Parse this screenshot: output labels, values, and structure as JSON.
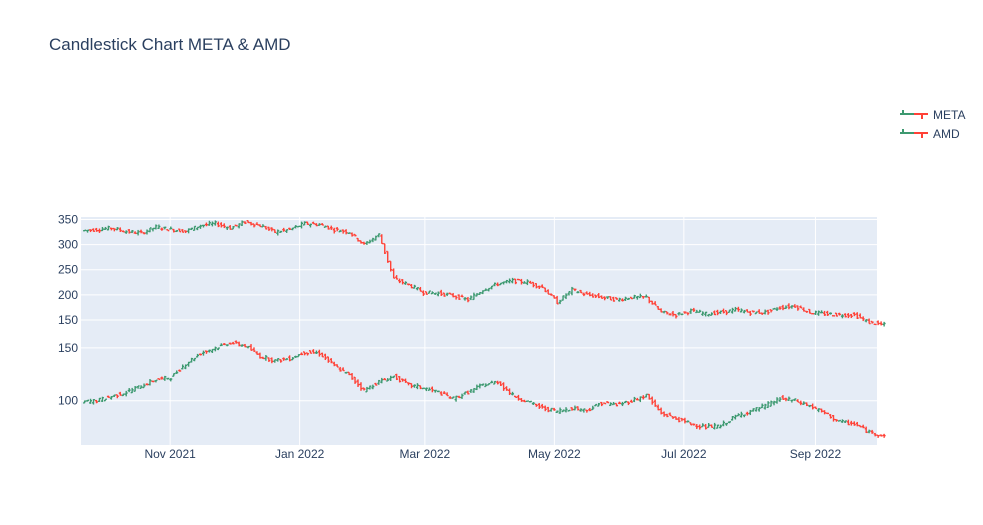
{
  "chart_data": {
    "type": "ohlc",
    "title": "Candlestick Chart META & AMD",
    "colors": {
      "increasing": "#3d9970",
      "decreasing": "#ff4136",
      "plot_bg": "#e5ecf6",
      "grid": "#ffffff",
      "text": "#2a3f5f"
    },
    "legend": {
      "position": "top-right",
      "entries": [
        "META",
        "AMD"
      ]
    },
    "x_axis": {
      "type": "date",
      "range": [
        "2021-09-20",
        "2022-09-30"
      ],
      "ticks": [
        {
          "date": "2021-11-01",
          "label": "Nov 2021"
        },
        {
          "date": "2022-01-01",
          "label": "Jan 2022"
        },
        {
          "date": "2022-03-01",
          "label": "Mar 2022"
        },
        {
          "date": "2022-05-01",
          "label": "May 2022"
        },
        {
          "date": "2022-07-01",
          "label": "Jul 2022"
        },
        {
          "date": "2022-09-01",
          "label": "Sep 2022"
        }
      ]
    },
    "panels": [
      {
        "name": "META",
        "y_range": [
          130,
          355
        ],
        "y_ticks": [
          150,
          200,
          250,
          300,
          350
        ],
        "series": [
          [
            "2021-09-21",
            330
          ],
          [
            "2021-09-28",
            333
          ],
          [
            "2021-10-05",
            326
          ],
          [
            "2021-10-12",
            323
          ],
          [
            "2021-10-19",
            335
          ],
          [
            "2021-10-26",
            330
          ],
          [
            "2021-11-02",
            327
          ],
          [
            "2021-11-09",
            338
          ],
          [
            "2021-11-16",
            342
          ],
          [
            "2021-11-23",
            333
          ],
          [
            "2021-11-30",
            345
          ],
          [
            "2021-12-07",
            338
          ],
          [
            "2021-12-14",
            325
          ],
          [
            "2021-12-21",
            330
          ],
          [
            "2021-12-28",
            342
          ],
          [
            "2022-01-04",
            340
          ],
          [
            "2022-01-11",
            330
          ],
          [
            "2022-01-18",
            325
          ],
          [
            "2022-01-25",
            300
          ],
          [
            "2022-02-01",
            320
          ],
          [
            "2022-02-08",
            232
          ],
          [
            "2022-02-15",
            220
          ],
          [
            "2022-02-22",
            205
          ],
          [
            "2022-03-01",
            203
          ],
          [
            "2022-03-08",
            198
          ],
          [
            "2022-03-15",
            190
          ],
          [
            "2022-03-22",
            210
          ],
          [
            "2022-03-29",
            222
          ],
          [
            "2022-04-05",
            228
          ],
          [
            "2022-04-12",
            225
          ],
          [
            "2022-04-19",
            215
          ],
          [
            "2022-04-26",
            185
          ],
          [
            "2022-05-03",
            210
          ],
          [
            "2022-05-10",
            200
          ],
          [
            "2022-05-17",
            195
          ],
          [
            "2022-05-24",
            190
          ],
          [
            "2022-05-31",
            195
          ],
          [
            "2022-06-07",
            195
          ],
          [
            "2022-06-14",
            165
          ],
          [
            "2022-06-21",
            160
          ],
          [
            "2022-06-28",
            168
          ],
          [
            "2022-07-05",
            162
          ],
          [
            "2022-07-12",
            165
          ],
          [
            "2022-07-19",
            170
          ],
          [
            "2022-07-26",
            165
          ],
          [
            "2022-08-02",
            165
          ],
          [
            "2022-08-09",
            175
          ],
          [
            "2022-08-16",
            178
          ],
          [
            "2022-08-23",
            165
          ],
          [
            "2022-08-30",
            162
          ],
          [
            "2022-09-06",
            160
          ],
          [
            "2022-09-13",
            160
          ],
          [
            "2022-09-20",
            145
          ],
          [
            "2022-09-27",
            140
          ]
        ]
      },
      {
        "name": "AMD",
        "y_range": [
          58,
          167
        ],
        "y_ticks": [
          100,
          150
        ],
        "series": [
          [
            "2021-09-21",
            100
          ],
          [
            "2021-09-28",
            104
          ],
          [
            "2021-10-05",
            108
          ],
          [
            "2021-10-12",
            114
          ],
          [
            "2021-10-19",
            120
          ],
          [
            "2021-10-26",
            122
          ],
          [
            "2021-11-02",
            135
          ],
          [
            "2021-11-09",
            145
          ],
          [
            "2021-11-16",
            150
          ],
          [
            "2021-11-23",
            155
          ],
          [
            "2021-11-30",
            152
          ],
          [
            "2021-12-07",
            142
          ],
          [
            "2021-12-14",
            138
          ],
          [
            "2021-12-21",
            140
          ],
          [
            "2021-12-28",
            146
          ],
          [
            "2022-01-04",
            145
          ],
          [
            "2022-01-11",
            133
          ],
          [
            "2022-01-18",
            124
          ],
          [
            "2022-01-25",
            110
          ],
          [
            "2022-02-01",
            118
          ],
          [
            "2022-02-08",
            123
          ],
          [
            "2022-02-15",
            115
          ],
          [
            "2022-02-22",
            112
          ],
          [
            "2022-03-01",
            108
          ],
          [
            "2022-03-08",
            102
          ],
          [
            "2022-03-15",
            108
          ],
          [
            "2022-03-22",
            115
          ],
          [
            "2022-03-29",
            118
          ],
          [
            "2022-04-05",
            105
          ],
          [
            "2022-04-12",
            99
          ],
          [
            "2022-04-19",
            93
          ],
          [
            "2022-04-26",
            90
          ],
          [
            "2022-05-03",
            93
          ],
          [
            "2022-05-10",
            91
          ],
          [
            "2022-05-17",
            98
          ],
          [
            "2022-05-24",
            96
          ],
          [
            "2022-05-31",
            100
          ],
          [
            "2022-06-07",
            105
          ],
          [
            "2022-06-14",
            88
          ],
          [
            "2022-06-21",
            83
          ],
          [
            "2022-06-28",
            78
          ],
          [
            "2022-07-05",
            75
          ],
          [
            "2022-07-12",
            76
          ],
          [
            "2022-07-19",
            85
          ],
          [
            "2022-07-26",
            90
          ],
          [
            "2022-08-02",
            95
          ],
          [
            "2022-08-09",
            102
          ],
          [
            "2022-08-16",
            100
          ],
          [
            "2022-08-23",
            95
          ],
          [
            "2022-08-30",
            88
          ],
          [
            "2022-09-06",
            80
          ],
          [
            "2022-09-13",
            78
          ],
          [
            "2022-09-20",
            70
          ],
          [
            "2022-09-27",
            67
          ]
        ]
      }
    ]
  }
}
